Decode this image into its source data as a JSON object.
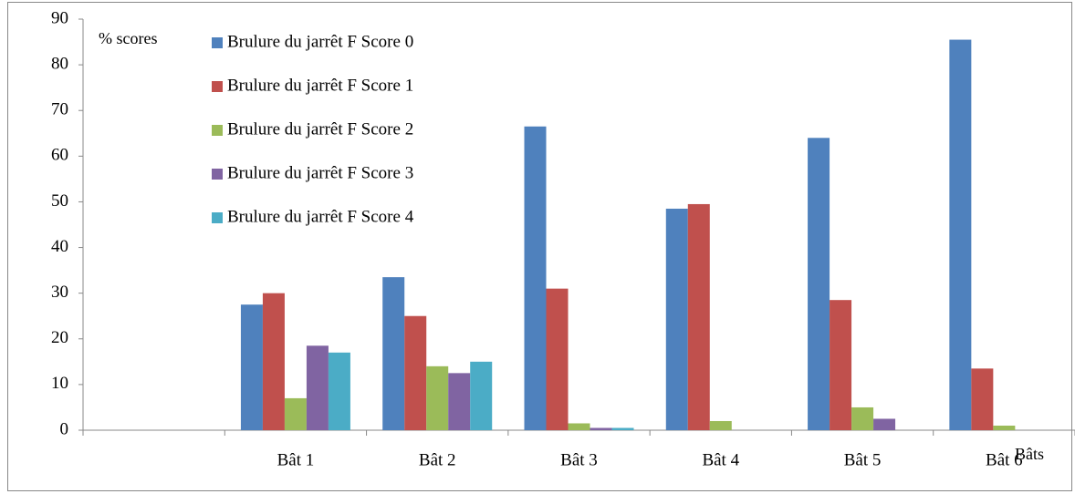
{
  "chart_data": {
    "type": "bar",
    "y_label": "% scores",
    "x_label": "Bâts",
    "categories": [
      null,
      "Bât 1",
      "Bât 2",
      "Bât 3",
      "Bât 4",
      "Bât 5",
      "Bât 6"
    ],
    "series": [
      {
        "name": "Brulure du jarrêt F Score 0",
        "color": "#4f81bd",
        "values": [
          null,
          27.5,
          33.5,
          66.5,
          48.5,
          64,
          85.5
        ]
      },
      {
        "name": "Brulure du jarrêt F Score 1",
        "color": "#c0504d",
        "values": [
          null,
          30,
          25,
          31,
          49.5,
          28.5,
          13.5
        ]
      },
      {
        "name": "Brulure du jarrêt F Score 2",
        "color": "#9bbb59",
        "values": [
          null,
          7,
          14,
          1.5,
          2,
          5,
          1
        ]
      },
      {
        "name": "Brulure du jarrêt F Score 3",
        "color": "#8064a2",
        "values": [
          null,
          18.5,
          12.5,
          0.5,
          0,
          2.5,
          0
        ]
      },
      {
        "name": "Brulure du jarrêt F Score 4",
        "color": "#4bacc6",
        "values": [
          null,
          17,
          15,
          0.5,
          0,
          0,
          0
        ]
      }
    ],
    "ylim": [
      0,
      90
    ],
    "yticks": [
      0,
      10,
      20,
      30,
      40,
      50,
      60,
      70,
      80,
      90
    ],
    "legend": "top-left"
  }
}
